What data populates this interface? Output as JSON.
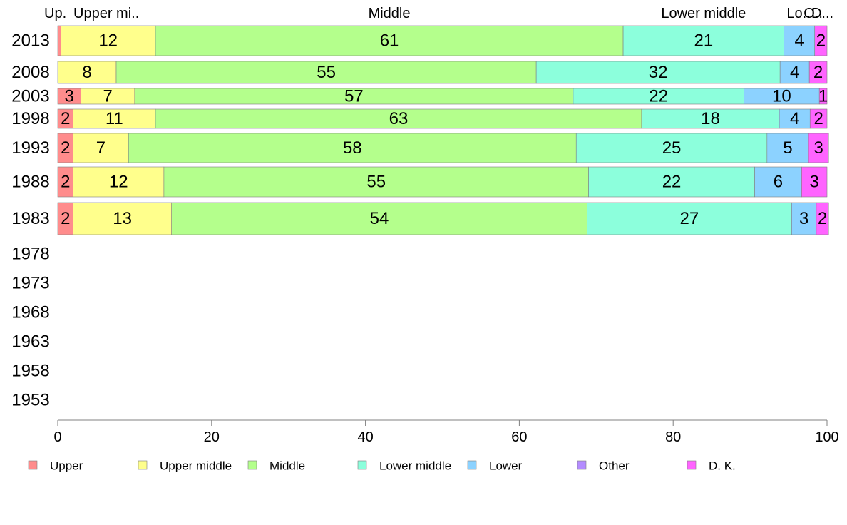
{
  "chart_data": {
    "type": "bar",
    "orientation": "horizontal",
    "stacked": true,
    "categories": [
      "2013",
      "2008",
      "2003",
      "1998",
      "1993",
      "1988",
      "1983",
      "1978",
      "1973",
      "1968",
      "1963",
      "1958",
      "1953"
    ],
    "series": [
      {
        "name": "Upper",
        "color": "#ff8c8c",
        "values": [
          0.4,
          null,
          3,
          2,
          2,
          2,
          2,
          null,
          null,
          null,
          null,
          null,
          null
        ],
        "labels": [
          "",
          "",
          "3",
          "2",
          "2",
          "2",
          "2",
          "",
          "",
          "",
          "",
          "",
          ""
        ]
      },
      {
        "name": "Upper middle",
        "color": "#ffff8c",
        "values": [
          12.3,
          7.6,
          7,
          10.7,
          7.2,
          11.8,
          12.8,
          null,
          null,
          null,
          null,
          null,
          null
        ],
        "labels": [
          "12",
          "8",
          "7",
          "11",
          "7",
          "12",
          "13",
          "",
          "",
          "",
          "",
          "",
          ""
        ]
      },
      {
        "name": "Middle",
        "color": "#b4ff8c",
        "values": [
          60.8,
          54.6,
          57,
          63.2,
          58.2,
          55.2,
          54,
          null,
          null,
          null,
          null,
          null,
          null
        ],
        "labels": [
          "61",
          "55",
          "57",
          "63",
          "58",
          "55",
          "54",
          "",
          "",
          "",
          "",
          "",
          ""
        ]
      },
      {
        "name": "Lower middle",
        "color": "#8cffdc",
        "values": [
          20.9,
          31.7,
          22.2,
          17.9,
          24.8,
          21.6,
          26.6,
          null,
          null,
          null,
          null,
          null,
          null
        ],
        "labels": [
          "21",
          "32",
          "22",
          "18",
          "25",
          "22",
          "27",
          "",
          "",
          "",
          "",
          "",
          ""
        ]
      },
      {
        "name": "Lower",
        "color": "#8cd2ff",
        "values": [
          4.0,
          3.8,
          9.8,
          4.0,
          5.4,
          6.1,
          3.2,
          null,
          null,
          null,
          null,
          null,
          null
        ],
        "labels": [
          "4",
          "4",
          "10",
          "4",
          "5",
          "6",
          "3",
          "",
          "",
          "",
          "",
          "",
          ""
        ]
      },
      {
        "name": "Other",
        "color": "#b48cff",
        "values": [
          null,
          null,
          null,
          null,
          null,
          null,
          null,
          null,
          null,
          null,
          null,
          null,
          null
        ],
        "labels": [
          "",
          "",
          "",
          "",
          "",
          "",
          "",
          "",
          "",
          "",
          "",
          "",
          ""
        ]
      },
      {
        "name": "D. K.",
        "color": "#ff64ff",
        "values": [
          1.6,
          2.3,
          1,
          2.2,
          2.6,
          3.3,
          1.6,
          null,
          null,
          null,
          null,
          null,
          null
        ],
        "labels": [
          "2",
          "2",
          "1",
          "2",
          "3",
          "3",
          "2",
          "",
          "",
          "",
          "",
          "",
          ""
        ]
      }
    ],
    "top_labels": [
      "Up.",
      "Upper mi..",
      "Middle",
      "Lower middle",
      "Lo..",
      "O..",
      "D..."
    ],
    "xlim": [
      0,
      100
    ],
    "xticks": [
      "0",
      "20",
      "40",
      "60",
      "80",
      "100"
    ],
    "grid": false,
    "legend_position": "bottom",
    "title": "",
    "xlabel": "",
    "ylabel": ""
  }
}
